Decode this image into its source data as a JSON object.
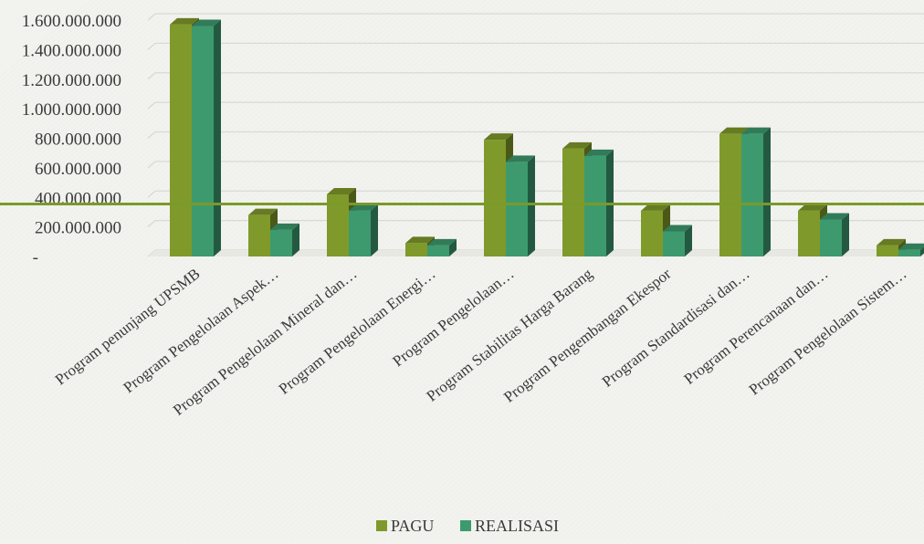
{
  "chart_data": {
    "type": "bar",
    "style": "3d-clustered-column",
    "categories": [
      "Program penunjang UPSMB",
      "Program Pengelolaan Aspek…",
      "Program Pengelolaan Mineral dan…",
      "Program Pengelolaan Energi…",
      "Program Pengelolaan…",
      "Program Stabilitas Harga Barang",
      "Program Pengembangan Ekespor",
      "Program Standardisasi dan…",
      "Program Perencanaan dan…",
      "Program Pengelolaan Sistem…"
    ],
    "series": [
      {
        "name": "PAGU",
        "color": "#7f9a2a",
        "values": [
          1570000000,
          280000000,
          420000000,
          90000000,
          790000000,
          730000000,
          310000000,
          830000000,
          310000000,
          75000000
        ]
      },
      {
        "name": "REALISASI",
        "color": "#3d9a6e",
        "values": [
          1560000000,
          180000000,
          310000000,
          75000000,
          640000000,
          680000000,
          170000000,
          830000000,
          250000000,
          45000000
        ]
      }
    ],
    "y_ticks": [
      "-",
      "200.000.000",
      "400.000.000",
      "600.000.000",
      "800.000.000",
      "1.000.000.000",
      "1.200.000.000",
      "1.400.000.000",
      "1.600.000.000"
    ],
    "ylim": [
      0,
      1600000000
    ],
    "grid": true,
    "legend_position": "bottom",
    "reference_line": {
      "value": 355000000,
      "color": "#7a9a2a"
    }
  }
}
